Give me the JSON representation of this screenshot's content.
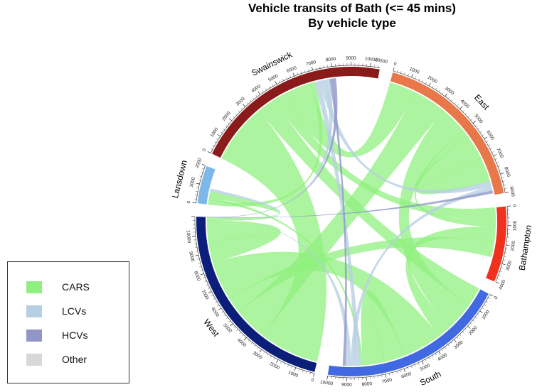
{
  "chart_data": {
    "type": "chord",
    "title": [
      "Vehicle transits of Bath (<= 45 mins)",
      "By vehicle type"
    ],
    "sectors": [
      {
        "name": "Swainswick",
        "total": 10500,
        "color": "#8b1a1a",
        "ticks": [
          0,
          1000,
          2000,
          3000,
          4000,
          5000,
          6000,
          7000,
          8000,
          9000,
          10000,
          10500
        ]
      },
      {
        "name": "East",
        "total": 9000,
        "color": "#e8774a",
        "ticks": [
          0,
          1000,
          2000,
          3000,
          4000,
          5000,
          6000,
          7000,
          8000,
          9000
        ]
      },
      {
        "name": "Bathampton",
        "total": 4000,
        "color": "#f0311e",
        "ticks": [
          0,
          1000,
          2000,
          3000,
          4000
        ]
      },
      {
        "name": "South",
        "total": 10000,
        "color": "#4169e1",
        "ticks": [
          0,
          1000,
          2000,
          3000,
          4000,
          5000,
          6000,
          7000,
          8000,
          9000,
          10000
        ]
      },
      {
        "name": "West",
        "total": 11000,
        "color": "#0b1f7a",
        "ticks": [
          0,
          1000,
          2000,
          3000,
          4000,
          5000,
          6000,
          7000,
          8000,
          9000,
          10000
        ]
      },
      {
        "name": "Lansdown",
        "total": 2000,
        "color": "#7eb7ea",
        "ticks": [
          0,
          1000,
          2000
        ]
      }
    ],
    "vehicle_types": [
      {
        "name": "CARS",
        "color": "#90f07f"
      },
      {
        "name": "LCVs",
        "color": "#b7cfe3"
      },
      {
        "name": "HCVs",
        "color": "#9196c8"
      },
      {
        "name": "Other",
        "color": "#d8d8d8"
      }
    ],
    "flows": [
      {
        "from": "Swainswick",
        "to": "West",
        "type": "CARS",
        "value": 3400
      },
      {
        "from": "Swainswick",
        "to": "South",
        "type": "CARS",
        "value": 1100
      },
      {
        "from": "Swainswick",
        "to": "South",
        "type": "LCVs",
        "value": 300
      },
      {
        "from": "Swainswick",
        "to": "South",
        "type": "HCVs",
        "value": 150
      },
      {
        "from": "Swainswick",
        "to": "Bathampton",
        "type": "CARS",
        "value": 700
      },
      {
        "from": "Swainswick",
        "to": "East",
        "type": "CARS",
        "value": 1500
      },
      {
        "from": "Swainswick",
        "to": "East",
        "type": "LCVs",
        "value": 300
      },
      {
        "from": "Swainswick",
        "to": "Lansdown",
        "type": "CARS",
        "value": 250
      },
      {
        "from": "East",
        "to": "West",
        "type": "CARS",
        "value": 1900
      },
      {
        "from": "East",
        "to": "West",
        "type": "HCVs",
        "value": 150
      },
      {
        "from": "East",
        "to": "South",
        "type": "CARS",
        "value": 1600
      },
      {
        "from": "East",
        "to": "South",
        "type": "LCVs",
        "value": 250
      },
      {
        "from": "East",
        "to": "Bathampton",
        "type": "CARS",
        "value": 400
      },
      {
        "from": "East",
        "to": "East",
        "type": "CARS",
        "value": 1400
      },
      {
        "from": "Bathampton",
        "to": "South",
        "type": "CARS",
        "value": 800
      },
      {
        "from": "Bathampton",
        "to": "West",
        "type": "CARS",
        "value": 900
      },
      {
        "from": "South",
        "to": "West",
        "type": "CARS",
        "value": 2200
      },
      {
        "from": "South",
        "to": "West",
        "type": "LCVs",
        "value": 300
      },
      {
        "from": "South",
        "to": "South",
        "type": "CARS",
        "value": 1200
      },
      {
        "from": "South",
        "to": "Lansdown",
        "type": "CARS",
        "value": 150
      },
      {
        "from": "West",
        "to": "West",
        "type": "CARS",
        "value": 1200
      },
      {
        "from": "West",
        "to": "Lansdown",
        "type": "CARS",
        "value": 350
      },
      {
        "from": "West",
        "to": "Lansdown",
        "type": "LCVs",
        "value": 150
      },
      {
        "from": "Swainswick",
        "to": "West",
        "type": "HCVs",
        "value": 200
      },
      {
        "from": "Swainswick",
        "to": "West",
        "type": "LCVs",
        "value": 250
      }
    ],
    "legend_position": "bottom-left"
  }
}
